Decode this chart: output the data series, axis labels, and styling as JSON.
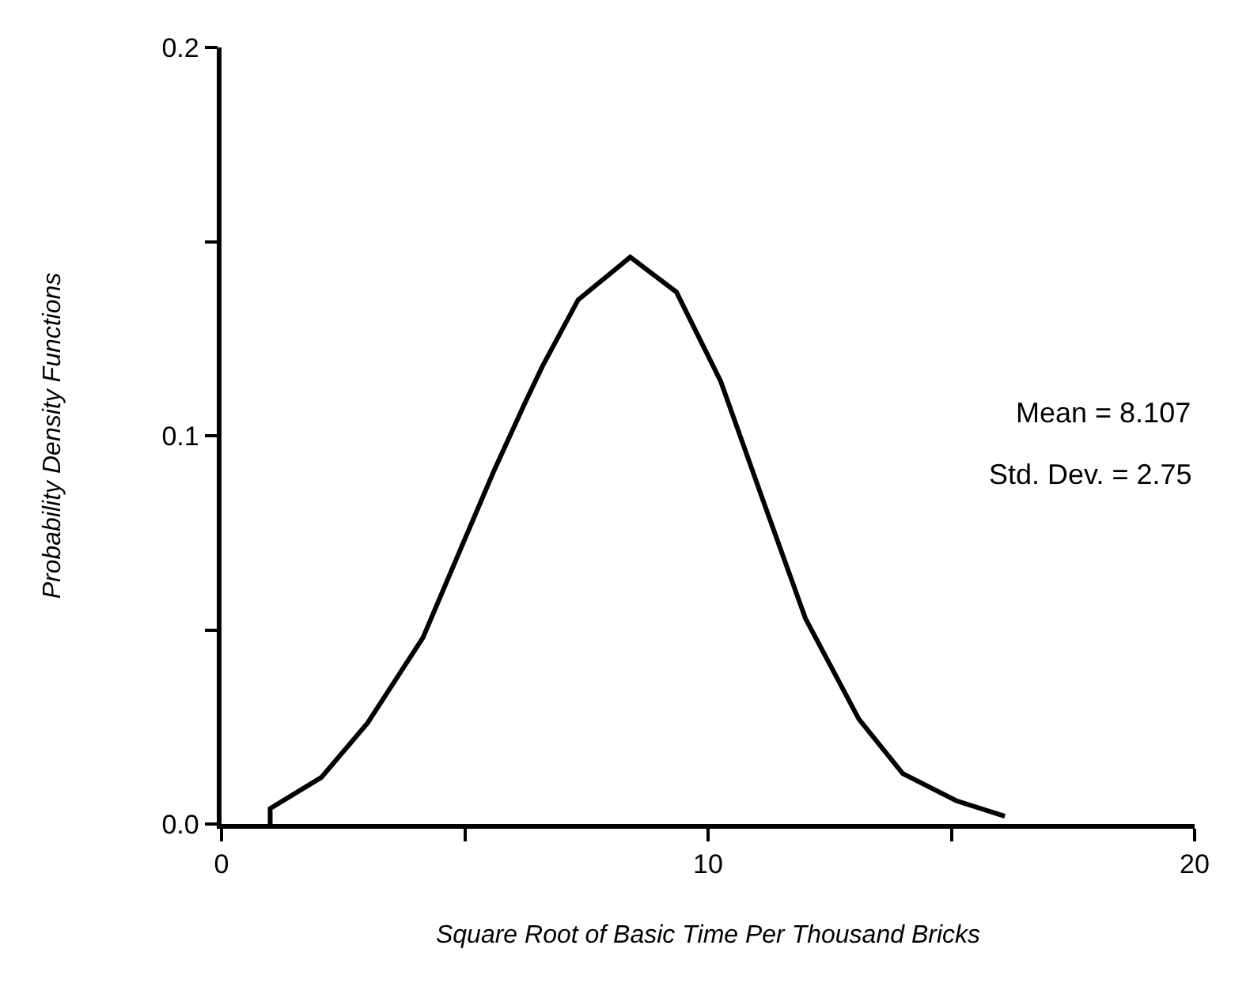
{
  "chart_data": {
    "type": "line",
    "xlabel": "Square Root of Basic Time Per Thousand Bricks",
    "ylabel": "Probability Density Functions",
    "x": [
      1.0,
      1.0,
      2.05,
      3.0,
      4.14,
      4.92,
      5.6,
      6.22,
      6.6,
      7.33,
      8.4,
      9.35,
      10.26,
      11.14,
      12.0,
      13.1,
      14.0,
      15.1,
      16.1
    ],
    "series": [
      {
        "color": "#000000",
        "values": [
          0.0,
          0.004,
          0.012,
          0.026,
          0.048,
          0.071,
          0.091,
          0.108,
          0.118,
          0.135,
          0.146,
          0.137,
          0.114,
          0.083,
          0.053,
          0.027,
          0.013,
          0.006,
          0.002
        ]
      }
    ],
    "xlim": [
      0,
      20
    ],
    "ylim": [
      0,
      0.2
    ],
    "xticks": [
      0,
      {
        "value": 5,
        "label": null
      },
      10,
      {
        "value": 15,
        "label": null
      },
      20
    ],
    "yticks": [
      {
        "value": 0,
        "label": "0.0"
      },
      {
        "value": 0.05,
        "label": null
      },
      0.1,
      {
        "value": 0.15,
        "label": null
      },
      0.2
    ],
    "annotations": [
      "Mean = 8.107",
      "Std. Dev. = 2.75"
    ],
    "marker": "none",
    "line_style": "solid"
  }
}
